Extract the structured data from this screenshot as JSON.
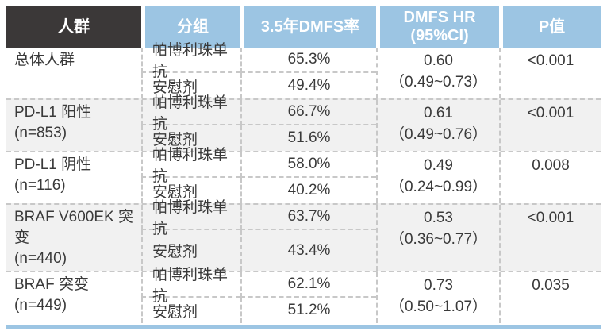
{
  "header": {
    "col1": "人群",
    "col2": "分组",
    "col3": "3.5年DMFS率",
    "col4_line1": "DMFS HR",
    "col4_line2": "(95%CI)",
    "col5": "P值"
  },
  "rows": [
    {
      "population": "总体人群",
      "n": "",
      "arm1": "帕博利珠单抗",
      "rate1": "65.3%",
      "arm2": "安慰剂",
      "rate2": "49.4%",
      "hr": "0.60",
      "ci": "（0.49~0.73）",
      "p": "<0.001"
    },
    {
      "population": "PD-L1 阳性",
      "n": "(n=853)",
      "arm1": "帕博利珠单抗",
      "rate1": "66.7%",
      "arm2": "安慰剂",
      "rate2": "51.6%",
      "hr": "0.61",
      "ci": "（0.49~0.76）",
      "p": "<0.001"
    },
    {
      "population": "PD-L1 阴性",
      "n": "(n=116)",
      "arm1": "帕博利珠单抗",
      "rate1": "58.0%",
      "arm2": "安慰剂",
      "rate2": "40.2%",
      "hr": "0.49",
      "ci": "（0.24~0.99）",
      "p": "0.008"
    },
    {
      "population": "BRAF V600EK 突变",
      "n": "(n=440)",
      "arm1": "帕博利珠单抗",
      "rate1": "63.7%",
      "arm2": "安慰剂",
      "rate2": "43.4%",
      "hr": "0.53",
      "ci": "（0.36~0.77）",
      "p": "<0.001"
    },
    {
      "population": "BRAF 突变",
      "n": "(n=449)",
      "arm1": "帕博利珠单抗",
      "rate1": "62.1%",
      "arm2": "安慰剂",
      "rate2": "51.2%",
      "hr": "0.73",
      "ci": "（0.50~1.07）",
      "p": "0.035"
    }
  ],
  "colors": {
    "header_dark": "#3B3838",
    "header_blue": "#9CC5E3",
    "band_gray": "#F1F1F1",
    "dashed_border": "#C8C8C8",
    "accent_bar": "#9CC5E3"
  }
}
